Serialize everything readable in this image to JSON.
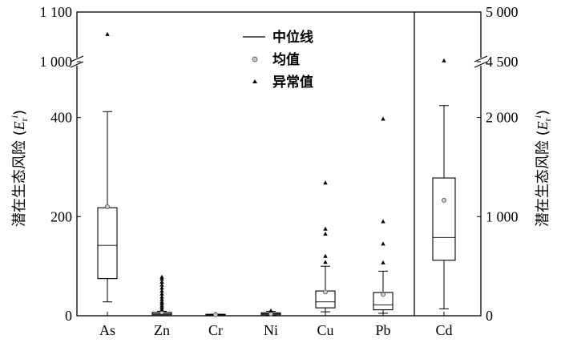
{
  "chart_data": {
    "type": "box",
    "left_axis": {
      "label_main": "潜在生态风险 (",
      "label_E": "E",
      "label_sub": "r",
      "label_sup": "i",
      "label_close": ")",
      "ticks_lower": [
        "0",
        "200",
        "400"
      ],
      "ticks_upper": [
        "1 000",
        "1 100"
      ]
    },
    "right_axis": {
      "label_main": "潜在生态风险 (",
      "label_E": "E",
      "label_sub": "r",
      "label_sup": "i",
      "label_close": ")",
      "ticks_lower": [
        "0",
        "1 000",
        "2 000"
      ],
      "ticks_upper": [
        "4 500",
        "5 000"
      ]
    },
    "legend": {
      "median": "中位线",
      "mean": "均值",
      "outlier": "异常值"
    },
    "categories": [
      "As",
      "Zn",
      "Cr",
      "Ni",
      "Cu",
      "Pb",
      "Cd"
    ],
    "boxes": [
      {
        "name": "As",
        "axis": "left",
        "whisker_low": 28,
        "q1": 75,
        "median": 142,
        "q3": 218,
        "whisker_high": 412,
        "mean": 220,
        "outliers": [
          1055
        ]
      },
      {
        "name": "Zn",
        "axis": "left",
        "whisker_low": 0,
        "q1": 2,
        "median": 4,
        "q3": 7,
        "whisker_high": 9,
        "mean": 7,
        "outliers": [
          12,
          16,
          20,
          24,
          28,
          33,
          38,
          44,
          50,
          56,
          62,
          68,
          74,
          78
        ]
      },
      {
        "name": "Cr",
        "axis": "left",
        "whisker_low": 0,
        "q1": 1,
        "median": 2,
        "q3": 3,
        "whisker_high": 3,
        "mean": 2,
        "outliers": []
      },
      {
        "name": "Ni",
        "axis": "left",
        "whisker_low": 1,
        "q1": 2,
        "median": 4,
        "q3": 6,
        "whisker_high": 9,
        "mean": 4,
        "outliers": [
          10
        ]
      },
      {
        "name": "Cu",
        "axis": "left",
        "whisker_low": 8,
        "q1": 16,
        "median": 28,
        "q3": 50,
        "whisker_high": 100,
        "mean": 48,
        "outliers": [
          108,
          120,
          165,
          175,
          268
        ]
      },
      {
        "name": "Pb",
        "axis": "left",
        "whisker_low": 5,
        "q1": 12,
        "median": 22,
        "q3": 47,
        "whisker_high": 90,
        "mean": 43,
        "outliers": [
          107,
          145,
          190,
          397
        ]
      },
      {
        "name": "Cd",
        "axis": "right",
        "whisker_low": 70,
        "q1": 560,
        "median": 790,
        "q3": 1390,
        "whisker_high": 2120,
        "mean": 1165,
        "outliers": [
          4510
        ]
      }
    ]
  }
}
